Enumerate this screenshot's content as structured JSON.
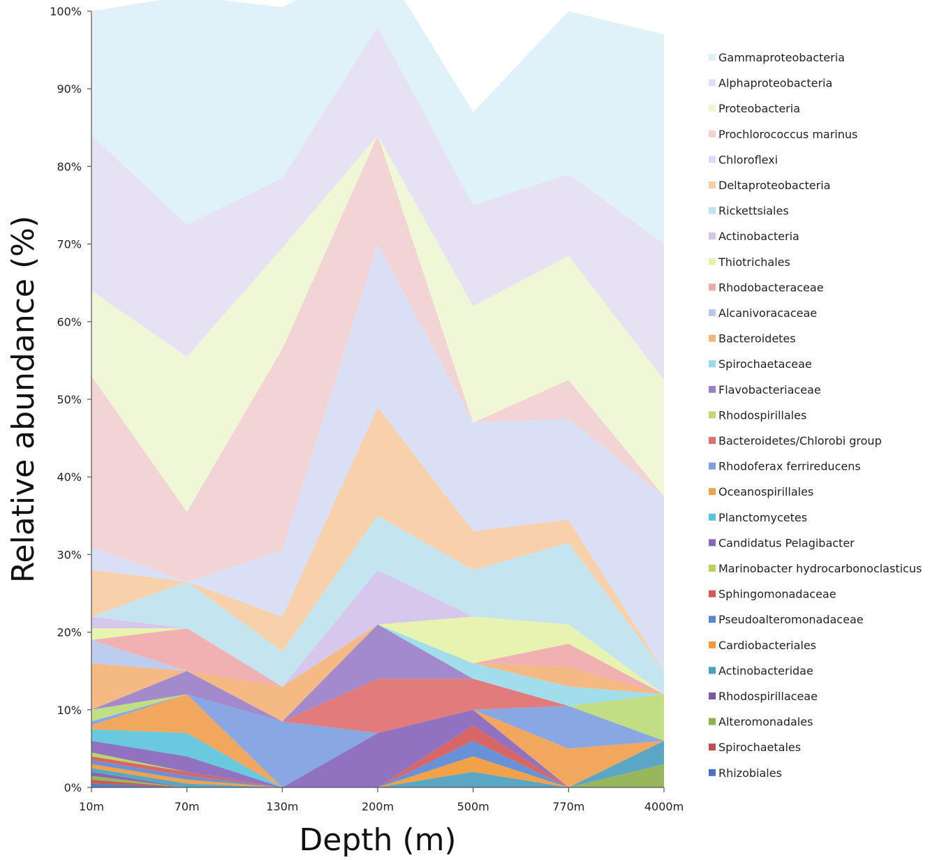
{
  "chart_data": {
    "type": "area",
    "stacked": "percent",
    "xlabel": "Depth (m)",
    "ylabel": "Relative abundance (%)",
    "ylim": [
      0,
      100
    ],
    "yticks": [
      "0%",
      "10%",
      "20%",
      "30%",
      "40%",
      "50%",
      "60%",
      "70%",
      "80%",
      "90%",
      "100%"
    ],
    "categories": [
      "10m",
      "70m",
      "130m",
      "200m",
      "500m",
      "770m",
      "4000m"
    ],
    "legend_position": "right",
    "series": [
      {
        "name": "Rhizobiales",
        "color": "#4a72c4",
        "values": [
          0.5,
          0.0,
          0.0,
          0.0,
          0.0,
          0.0,
          0.0
        ]
      },
      {
        "name": "Spirochaetales",
        "color": "#c0504d",
        "values": [
          0.5,
          0.0,
          0.0,
          0.0,
          0.0,
          0.0,
          0.0
        ]
      },
      {
        "name": "Alteromonadales",
        "color": "#8fb04e",
        "values": [
          0.5,
          0.0,
          0.0,
          0.0,
          0.0,
          0.0,
          3.0
        ]
      },
      {
        "name": "Rhodospirillaceae",
        "color": "#7a5aa8",
        "values": [
          0.5,
          0.0,
          0.0,
          0.0,
          0.0,
          0.0,
          0.0
        ]
      },
      {
        "name": "Actinobacteridae",
        "color": "#4ba0c0",
        "values": [
          0.5,
          0.5,
          0.0,
          0.0,
          2.0,
          0.0,
          3.0
        ]
      },
      {
        "name": "Cardiobacteriales",
        "color": "#f09a3a",
        "values": [
          0.5,
          0.5,
          0.0,
          0.0,
          2.0,
          0.0,
          0.0
        ]
      },
      {
        "name": "Pseudoalteromonadaceae",
        "color": "#5b88d4",
        "values": [
          0.5,
          0.5,
          0.0,
          0.0,
          2.0,
          0.0,
          0.0
        ]
      },
      {
        "name": "Sphingomonadaceae",
        "color": "#d45a5a",
        "values": [
          0.5,
          0.5,
          0.0,
          0.0,
          2.0,
          0.0,
          0.0
        ]
      },
      {
        "name": "Marinobacter hydrocarbonoclasticus",
        "color": "#b4d45a",
        "values": [
          0.5,
          0.0,
          0.0,
          0.0,
          0.0,
          0.0,
          0.0
        ]
      },
      {
        "name": "Candidatus Pelagibacter",
        "color": "#8866bb",
        "values": [
          1.5,
          2.0,
          0.0,
          7.0,
          2.0,
          0.0,
          0.0
        ]
      },
      {
        "name": "Planctomycetes",
        "color": "#5bc4dc",
        "values": [
          1.5,
          3.0,
          0.0,
          0.0,
          0.0,
          0.0,
          0.0
        ]
      },
      {
        "name": "Oceanospirillales",
        "color": "#f0a050",
        "values": [
          0.5,
          5.0,
          0.0,
          0.0,
          0.0,
          5.0,
          0.0
        ]
      },
      {
        "name": "Rhodoferax ferrireducens",
        "color": "#7f9fe0",
        "values": [
          0.5,
          0.0,
          8.5,
          0.0,
          0.0,
          5.5,
          0.0
        ]
      },
      {
        "name": "Bacteroidetes/Chlorobi group",
        "color": "#e07070",
        "values": [
          0.0,
          0.0,
          0.0,
          7.0,
          4.0,
          0.0,
          0.0
        ]
      },
      {
        "name": "Rhodospirillales",
        "color": "#bcdb78",
        "values": [
          1.5,
          0.0,
          0.0,
          0.0,
          0.0,
          0.0,
          6.0
        ]
      },
      {
        "name": "Flavobacteriaceae",
        "color": "#9a80c8",
        "values": [
          0.0,
          3.0,
          0.0,
          7.0,
          0.0,
          0.0,
          0.0
        ]
      },
      {
        "name": "Spirochaetaceae",
        "color": "#9adaea",
        "values": [
          0.0,
          0.0,
          0.0,
          0.0,
          2.0,
          2.5,
          0.0
        ]
      },
      {
        "name": "Bacteroidetes",
        "color": "#f4b47a",
        "values": [
          6.0,
          0.0,
          4.5,
          0.0,
          0.0,
          2.5,
          0.0
        ]
      },
      {
        "name": "Alcanivoracaceae",
        "color": "#b7c9ee",
        "values": [
          3.0,
          0.0,
          0.0,
          0.0,
          0.0,
          0.0,
          0.0
        ]
      },
      {
        "name": "Rhodobacteraceae",
        "color": "#eeaaaa",
        "values": [
          0.0,
          5.5,
          0.0,
          0.0,
          0.0,
          3.0,
          0.0
        ]
      },
      {
        "name": "Thiotrichales",
        "color": "#e6f2a8",
        "values": [
          1.5,
          0.0,
          0.0,
          0.0,
          6.0,
          2.5,
          0.0
        ]
      },
      {
        "name": "Actinobacteria",
        "color": "#d2c2ec",
        "values": [
          1.5,
          0.0,
          0.0,
          7.0,
          0.0,
          0.0,
          0.0
        ]
      },
      {
        "name": "Rickettsiales",
        "color": "#bfe3ef",
        "values": [
          0.0,
          6.0,
          4.5,
          7.0,
          6.0,
          10.5,
          3.0
        ]
      },
      {
        "name": "Deltaproteobacteria",
        "color": "#f6cda4",
        "values": [
          6.0,
          0.0,
          4.5,
          14.0,
          5.0,
          3.0,
          0.0
        ]
      },
      {
        "name": "Chloroflexi",
        "color": "#d6ddf4",
        "values": [
          3.0,
          0.0,
          8.5,
          21.0,
          14.0,
          13.0,
          22.5
        ]
      },
      {
        "name": "Prochlorococcus marinus",
        "color": "#f1d0d0",
        "values": [
          22.0,
          9.0,
          26.0,
          14.0,
          0.0,
          5.0,
          0.0
        ]
      },
      {
        "name": "Proteobacteria",
        "color": "#eef6d4",
        "values": [
          11.0,
          20.0,
          13.0,
          0.0,
          15.0,
          16.0,
          15.0
        ]
      },
      {
        "name": "Alphaproteobacteria",
        "color": "#e4def2",
        "values": [
          20.0,
          17.0,
          9.0,
          14.0,
          13.0,
          10.5,
          17.5
        ]
      },
      {
        "name": "Gammaproteobacteria",
        "color": "#dcf0f8",
        "values": [
          16.0,
          29.5,
          22.0,
          9.0,
          12.0,
          21.0,
          27.0
        ]
      }
    ]
  }
}
